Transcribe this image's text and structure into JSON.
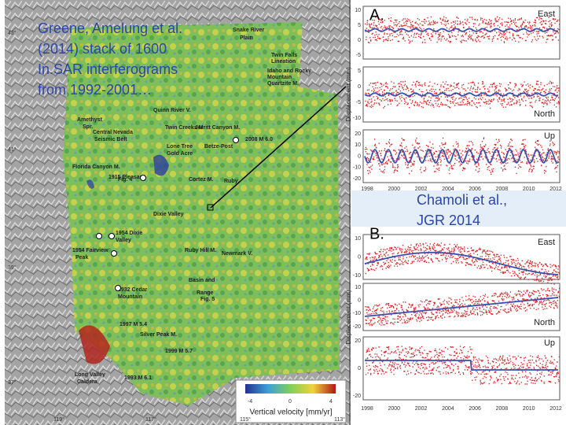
{
  "caption": {
    "lines": [
      "Greene, Amelung et al.",
      "(2014) stack of 1600",
      "In.SAR interferograms",
      "from 1992-2001…"
    ]
  },
  "map": {
    "latitudes": [
      "43°",
      "41°",
      "39°",
      "37°"
    ],
    "longitudes": [
      "119°",
      "117°",
      "115°",
      "113°"
    ],
    "labels": [
      "Snake River",
      "Plain",
      "Twin Falls",
      "Lineation",
      "Idaho and Rocky",
      "Mountain",
      "Quartzite M.",
      "Amethyst",
      "Spr.",
      "Quinn River V.",
      "Central Nevada",
      "Seismic Belt",
      "Twin Creeks M.",
      "Jerritt Canyon M.",
      "Lone Tree",
      "Gold Acre",
      "Betze-Post",
      "2008 M 6.0",
      "Florida Canyon M.",
      "Fig. 4",
      "1915 Pleasant",
      "Cortez M.",
      "Ruby",
      "Dixie Valley",
      "1954 Dixie",
      "Valley",
      "1954 Fairview",
      "Peak",
      "Ruby Hill M.",
      "Newmark V.",
      "Basin and",
      "Range",
      "1932 Cedar",
      "Mountain",
      "Fig. 5",
      "1997 M 5.4",
      "Silver Peak M.",
      "1999 M 5.7",
      "Long Valley",
      "Caldera",
      "1993 M 6.1"
    ],
    "colorbar": {
      "ticks": [
        "-4",
        "0",
        "4"
      ],
      "title": "Vertical velocity [mm/yr]"
    }
  },
  "panel_a": {
    "letter": "A.",
    "y_label": "Displacement (mm)",
    "plots": [
      {
        "component": "East",
        "yticks": [
          "10",
          "5",
          "0",
          "-5"
        ]
      },
      {
        "component": "North",
        "yticks": [
          "5",
          "0",
          "-5",
          "-10"
        ]
      },
      {
        "component": "Up",
        "yticks": [
          "20",
          "10",
          "0",
          "-10",
          "-20"
        ]
      }
    ],
    "years": [
      "1998",
      "2000",
      "2002",
      "2004",
      "2006",
      "2008",
      "2010",
      "2012"
    ]
  },
  "citation": {
    "lines": [
      "Chamoli et al.,",
      "JGR 2014"
    ]
  },
  "panel_b": {
    "letter": "B.",
    "y_label": "Displacement (mm)",
    "plots": [
      {
        "component": "East",
        "yticks": [
          "10",
          "0",
          "-10"
        ]
      },
      {
        "component": "North",
        "yticks": [
          "10",
          "0",
          "-10",
          "-20"
        ]
      },
      {
        "component": "Up",
        "yticks": [
          "20",
          "0",
          "-20"
        ]
      }
    ],
    "years": [
      "1998",
      "2000",
      "2002",
      "2004",
      "2006",
      "2008",
      "2010",
      "2012"
    ]
  }
}
